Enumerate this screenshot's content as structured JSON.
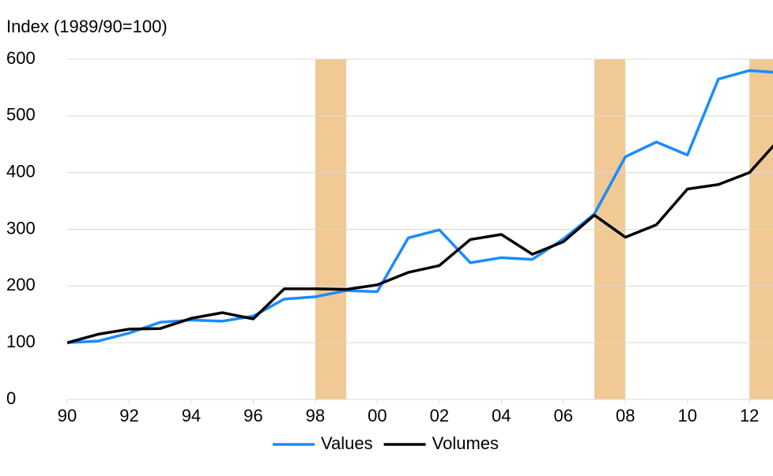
{
  "chart_data": {
    "type": "line",
    "y_axis_label": "Index (1989/90=100)",
    "x": [
      1990,
      1991,
      1992,
      1993,
      1994,
      1995,
      1996,
      1997,
      1998,
      1999,
      2000,
      2001,
      2002,
      2003,
      2004,
      2005,
      2006,
      2007,
      2008,
      2009,
      2010,
      2011,
      2012,
      2013
    ],
    "series": [
      {
        "name": "Values",
        "color": "#1a8cff",
        "values": [
          100,
          103,
          117,
          136,
          140,
          138,
          147,
          177,
          181,
          192,
          190,
          285,
          299,
          241,
          250,
          247,
          283,
          327,
          428,
          454,
          431,
          565,
          580,
          576
        ]
      },
      {
        "name": "Volumes",
        "color": "#000000",
        "values": [
          100,
          115,
          124,
          125,
          143,
          153,
          142,
          195,
          195,
          194,
          202,
          224,
          236,
          282,
          291,
          256,
          278,
          325,
          286,
          308,
          371,
          379,
          400,
          461
        ]
      }
    ],
    "shaded_periods": [
      [
        1998,
        1999
      ],
      [
        2007,
        2008
      ],
      [
        2012,
        2013
      ]
    ],
    "shade_color": "#f0c994",
    "xlim": [
      1990,
      2012.76
    ],
    "xticks": [
      {
        "value": 1990,
        "label": "90"
      },
      {
        "value": 1992,
        "label": "92"
      },
      {
        "value": 1994,
        "label": "94"
      },
      {
        "value": 1996,
        "label": "96"
      },
      {
        "value": 1998,
        "label": "98"
      },
      {
        "value": 2000,
        "label": "00"
      },
      {
        "value": 2002,
        "label": "02"
      },
      {
        "value": 2004,
        "label": "04"
      },
      {
        "value": 2006,
        "label": "06"
      },
      {
        "value": 2008,
        "label": "08"
      },
      {
        "value": 2010,
        "label": "10"
      },
      {
        "value": 2012,
        "label": "12"
      }
    ],
    "ylim": [
      0,
      600
    ],
    "yticks": [
      0,
      100,
      200,
      300,
      400,
      500,
      600
    ],
    "grid": true,
    "legend": "bottom"
  }
}
